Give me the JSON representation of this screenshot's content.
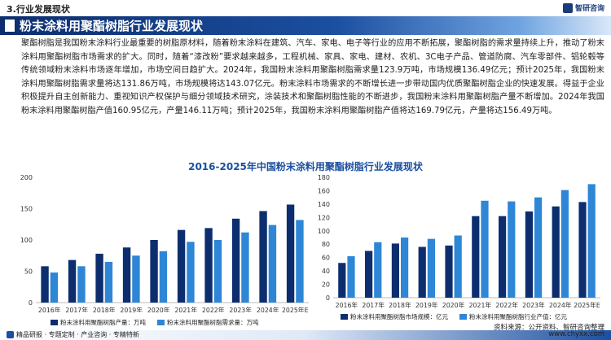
{
  "header": {
    "section_label": "3.行业发展现状",
    "logo_text": "智研咨询"
  },
  "banner": {
    "title": "粉末涂料用聚酯树脂行业发展现状"
  },
  "body": {
    "paragraph": "聚酯树脂是我国粉末涂料行业最重要的树脂原材料，随着粉末涂料在建筑、汽车、家电、电子等行业的应用不断拓展，聚酯树脂的需求量持续上升，推动了粉末涂料用聚酯树脂市场需求的扩大。同时，随着“漆改粉”要求越来越多，工程机械、家具、家电、建材、农机、3C电子产品、管道防腐、汽车零部件、铝轮毂等传统领域粉末涂料市场逐年增加，市场空间日趋扩大。2024年，我国粉末涂料用聚酯树脂需求量123.9万吨，市场规模136.49亿元；预计2025年，我国粉末涂料用聚酯树脂需求量将达131.86万吨，市场规模将达143.07亿元。粉末涂料市场需求的不断增长进一步带动国内优质聚酯树脂企业的快速发展。得益于企业积极提升自主创新能力、重视知识产权保护与细分领域技术研究，涂装技术和聚酯树脂性能的不断进步，我国粉末涂料用聚酯树脂产量不断增加。2024年我国粉末涂料用聚酯树脂产值160.95亿元，产量146.11万吨；预计2025年，我国粉末涂料用聚酯树脂产值将达169.79亿元，产量将达156.49万吨。"
  },
  "chart_title": "2016-2025年中国粉末涂料用聚酯树脂行业发展现状",
  "chart_data": [
    {
      "type": "bar",
      "categories": [
        "2016年",
        "2017年",
        "2018年",
        "2019年",
        "2020年",
        "2021年",
        "2022年",
        "2023年",
        "2024年",
        "2025年E"
      ],
      "series": [
        {
          "name": "粉末涂料用聚酯树脂产量：万吨",
          "values": [
            58,
            68,
            78,
            88,
            100,
            116,
            119,
            134,
            146.11,
            156.49
          ],
          "color": "#0d2e6e"
        },
        {
          "name": "粉末涂料用聚酯树脂需求量：万吨",
          "values": [
            48,
            58,
            65,
            75,
            82,
            97,
            100,
            112,
            123.9,
            131.86
          ],
          "color": "#2e86d6"
        }
      ],
      "ylim": [
        0,
        200
      ],
      "yticks": [
        0,
        50,
        100,
        150,
        200
      ],
      "grid": false,
      "legend": "bottom"
    },
    {
      "type": "bar",
      "categories": [
        "2016年",
        "2017年",
        "2018年",
        "2019年",
        "2020年",
        "2021年",
        "2022年",
        "2023年",
        "2024年",
        "2025年E"
      ],
      "series": [
        {
          "name": "粉末涂料用聚酯树脂市场规模：亿元",
          "values": [
            52,
            70,
            81,
            76,
            78,
            122,
            122,
            129,
            136.49,
            143.07
          ],
          "color": "#0d2e6e"
        },
        {
          "name": "粉末涂料用聚酯树脂行业产值：亿元",
          "values": [
            62,
            83,
            90,
            88,
            93,
            145,
            144,
            150,
            160.95,
            169.79
          ],
          "color": "#2e86d6"
        }
      ],
      "ylim": [
        0,
        180
      ],
      "yticks": [
        0,
        20,
        40,
        60,
        80,
        100,
        120,
        140,
        160,
        180
      ],
      "grid": false,
      "legend": "bottom"
    }
  ],
  "footer": {
    "tagline": "精品研报 · 专题定制 · 产业咨询 · 专精特新",
    "source_line1": "资料来源：公开资料、智研咨询整理",
    "source_line2": "www.chyxx.com"
  }
}
